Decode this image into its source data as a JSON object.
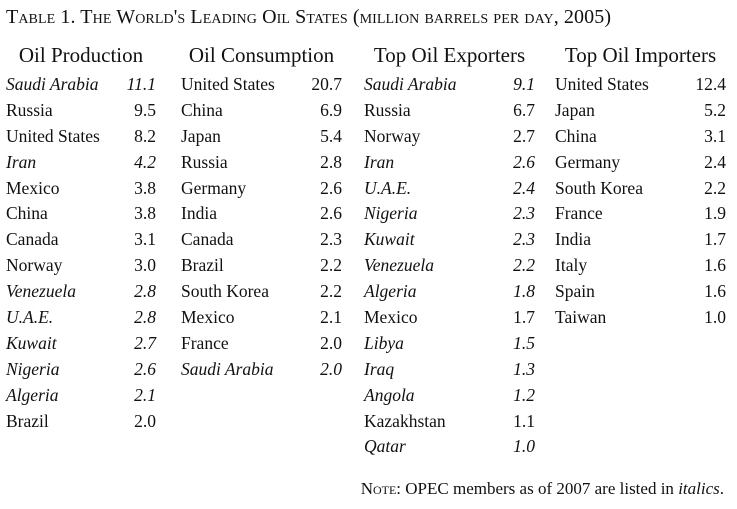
{
  "title": "Table 1. The World's Leading Oil States (million barrels per day, 2005)",
  "columns": [
    {
      "heading": "Oil Production",
      "rows": [
        {
          "name": "Saudi Arabia",
          "value": "11.1",
          "opec": true
        },
        {
          "name": "Russia",
          "value": "9.5",
          "opec": false
        },
        {
          "name": "United States",
          "value": "8.2",
          "opec": false
        },
        {
          "name": "Iran",
          "value": "4.2",
          "opec": true
        },
        {
          "name": "Mexico",
          "value": "3.8",
          "opec": false
        },
        {
          "name": "China",
          "value": "3.8",
          "opec": false
        },
        {
          "name": "Canada",
          "value": "3.1",
          "opec": false
        },
        {
          "name": "Norway",
          "value": "3.0",
          "opec": false
        },
        {
          "name": "Venezuela",
          "value": "2.8",
          "opec": true
        },
        {
          "name": "U.A.E.",
          "value": "2.8",
          "opec": true
        },
        {
          "name": "Kuwait",
          "value": "2.7",
          "opec": true
        },
        {
          "name": "Nigeria",
          "value": "2.6",
          "opec": true
        },
        {
          "name": "Algeria",
          "value": "2.1",
          "opec": true
        },
        {
          "name": "Brazil",
          "value": "2.0",
          "opec": false
        }
      ]
    },
    {
      "heading": "Oil Consumption",
      "rows": [
        {
          "name": "United States",
          "value": "20.7",
          "opec": false
        },
        {
          "name": "China",
          "value": "6.9",
          "opec": false
        },
        {
          "name": "Japan",
          "value": "5.4",
          "opec": false
        },
        {
          "name": "Russia",
          "value": "2.8",
          "opec": false
        },
        {
          "name": "Germany",
          "value": "2.6",
          "opec": false
        },
        {
          "name": "India",
          "value": "2.6",
          "opec": false
        },
        {
          "name": "Canada",
          "value": "2.3",
          "opec": false
        },
        {
          "name": "Brazil",
          "value": "2.2",
          "opec": false
        },
        {
          "name": "South Korea",
          "value": "2.2",
          "opec": false
        },
        {
          "name": "Mexico",
          "value": "2.1",
          "opec": false
        },
        {
          "name": "France",
          "value": "2.0",
          "opec": false
        },
        {
          "name": "Saudi Arabia",
          "value": "2.0",
          "opec": true
        }
      ]
    },
    {
      "heading": "Top Oil Exporters",
      "rows": [
        {
          "name": "Saudi Arabia",
          "value": "9.1",
          "opec": true
        },
        {
          "name": "Russia",
          "value": "6.7",
          "opec": false
        },
        {
          "name": "Norway",
          "value": "2.7",
          "opec": false
        },
        {
          "name": "Iran",
          "value": "2.6",
          "opec": true
        },
        {
          "name": "U.A.E.",
          "value": "2.4",
          "opec": true
        },
        {
          "name": "Nigeria",
          "value": "2.3",
          "opec": true
        },
        {
          "name": "Kuwait",
          "value": "2.3",
          "opec": true
        },
        {
          "name": "Venezuela",
          "value": "2.2",
          "opec": true
        },
        {
          "name": "Algeria",
          "value": "1.8",
          "opec": true
        },
        {
          "name": "Mexico",
          "value": "1.7",
          "opec": false
        },
        {
          "name": "Libya",
          "value": "1.5",
          "opec": true
        },
        {
          "name": "Iraq",
          "value": "1.3",
          "opec": true
        },
        {
          "name": "Angola",
          "value": "1.2",
          "opec": true
        },
        {
          "name": "Kazakhstan",
          "value": "1.1",
          "opec": false
        },
        {
          "name": "Qatar",
          "value": "1.0",
          "opec": true
        }
      ]
    },
    {
      "heading": "Top Oil Importers",
      "rows": [
        {
          "name": "United States",
          "value": "12.4",
          "opec": false
        },
        {
          "name": "Japan",
          "value": "5.2",
          "opec": false
        },
        {
          "name": "China",
          "value": "3.1",
          "opec": false
        },
        {
          "name": "Germany",
          "value": "2.4",
          "opec": false
        },
        {
          "name": "South Korea",
          "value": "2.2",
          "opec": false
        },
        {
          "name": "France",
          "value": "1.9",
          "opec": false
        },
        {
          "name": "India",
          "value": "1.7",
          "opec": false
        },
        {
          "name": "Italy",
          "value": "1.6",
          "opec": false
        },
        {
          "name": "Spain",
          "value": "1.6",
          "opec": false
        },
        {
          "name": "Taiwan",
          "value": "1.0",
          "opec": false
        }
      ]
    }
  ],
  "note": {
    "label": "Note:",
    "text": " OPEC members as of 2007 are listed in ",
    "emphasis": "italics",
    "end": "."
  }
}
